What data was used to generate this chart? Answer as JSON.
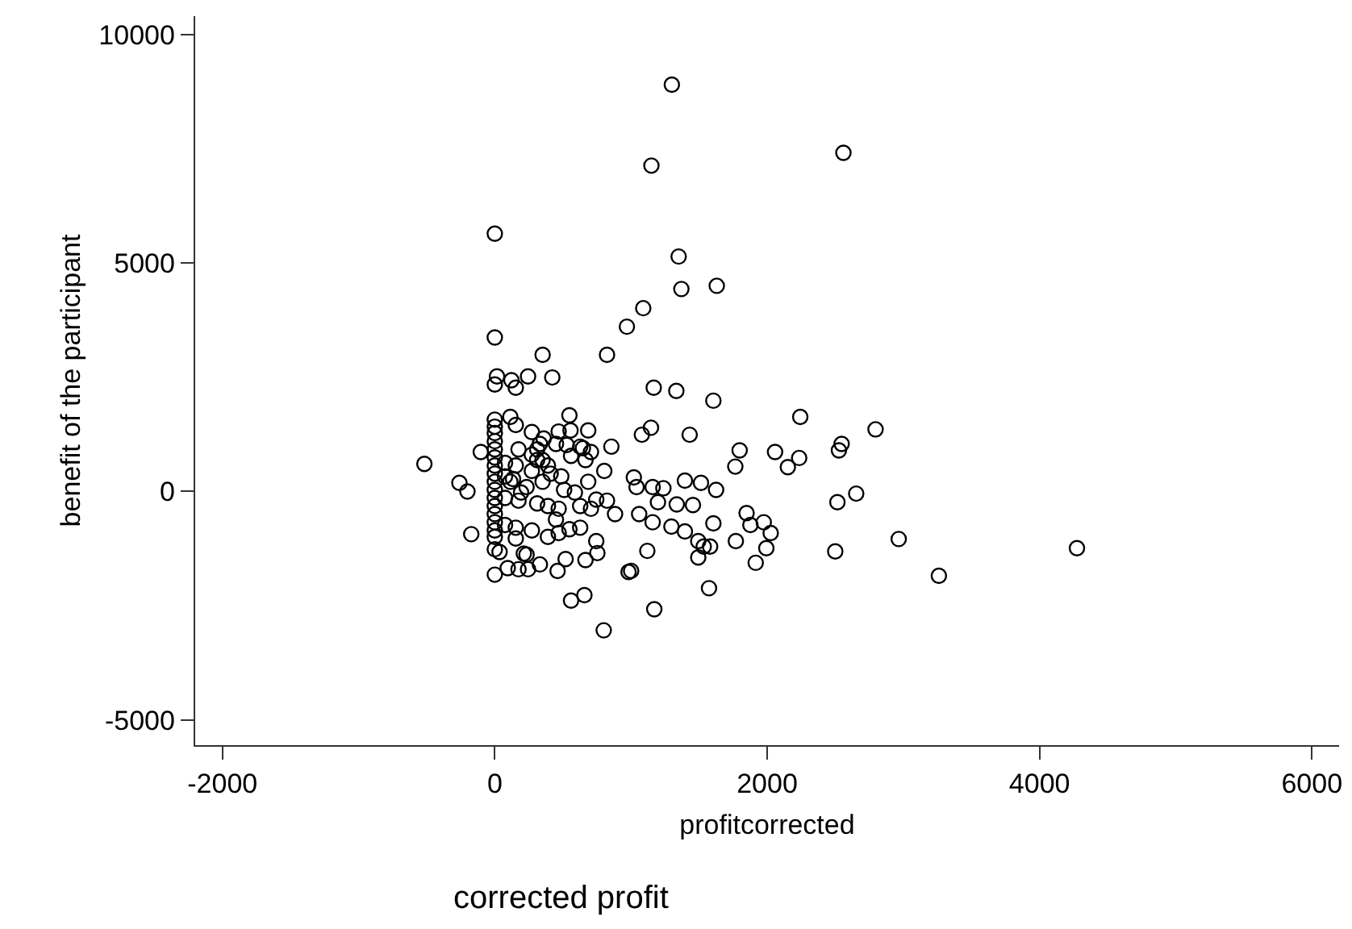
{
  "chart_data": {
    "type": "scatter",
    "xlabel": "profitcorrected",
    "ylabel": "benefit of the participant",
    "annotations": [
      "corrected profit"
    ],
    "xlim": [
      -2200,
      6200
    ],
    "ylim": [
      -5550,
      10400
    ],
    "xticks": [
      -2000,
      0,
      2000,
      4000,
      6000
    ],
    "yticks": [
      -5000,
      0,
      5000,
      10000
    ],
    "marker": "circle",
    "series": [
      {
        "color": "#000000",
        "x": [
          1300,
          1150,
          2560,
          0,
          1350,
          1630,
          1370,
          1090,
          970,
          0,
          351,
          824,
          16,
          122,
          244,
          422,
          0,
          154,
          1167,
          1333,
          1605,
          2243,
          0,
          0,
          0,
          0,
          0,
          0,
          0,
          0,
          0,
          0,
          0,
          0,
          0,
          0,
          0,
          0,
          114,
          154,
          548,
          469,
          556,
          686,
          272,
          359,
          449,
          528,
          627,
          647,
          706,
          856,
          -103,
          174,
          311,
          75,
          154,
          311,
          560,
          666,
          804,
          1431,
          1798,
          1766,
          2058,
          2152,
          2235,
          -517,
          -260,
          -201,
          -173,
          114,
          233,
          351,
          509,
          588,
          686,
          745,
          824,
          1021,
          1041,
          1159,
          1238,
          1396,
          1514,
          1625,
          75,
          174,
          311,
          390,
          469,
          627,
          706,
          883,
          1060,
          1198,
          1336,
          1455,
          1159,
          1297,
          1396,
          1605,
          1494,
          1534,
          1494,
          1581,
          1770,
          1849,
          1877,
          1975,
          2026,
          1994,
          1916,
          1573,
          1171,
          800,
          560,
          658,
          982,
          1001,
          1120,
          745,
          753,
          666,
          520,
          461,
          331,
          244,
          174,
          95,
          0,
          35,
          0,
          213,
          233,
          154,
          272,
          390,
          469,
          548,
          627,
          449,
          75,
          154,
          193,
          272,
          351,
          390,
          410,
          488,
          272,
          331,
          75,
          134,
          1147,
          1080,
          2796,
          2547,
          2527,
          2516,
          2654,
          2500,
          2966,
          3261,
          4275
        ],
        "values": [
          8900,
          7130,
          7410,
          5640,
          5140,
          4500,
          4430,
          4010,
          3605,
          3370,
          2990,
          2990,
          2518,
          2435,
          2518,
          2494,
          2340,
          2270,
          2270,
          2199,
          1986,
          1631,
          1572,
          1418,
          1277,
          1099,
          922,
          745,
          567,
          390,
          213,
          35,
          -142,
          -319,
          -496,
          -674,
          -851,
          -993,
          1631,
          1454,
          1667,
          1312,
          1336,
          1336,
          1300,
          1158,
          1040,
          1017,
          981,
          946,
          863,
          981,
          863,
          922,
          922,
          626,
          567,
          686,
          780,
          686,
          449,
          1241,
          898,
          544,
          863,
          532,
          733,
          603,
          189,
          0,
          -934,
          213,
          95,
          213,
          35,
          -24,
          213,
          -177,
          -201,
          307,
          95,
          95,
          71,
          236,
          189,
          35,
          -142,
          -201,
          -260,
          -319,
          -378,
          -319,
          -378,
          -496,
          -496,
          -236,
          -284,
          -296,
          -674,
          -768,
          -875,
          -697,
          -1087,
          -1206,
          -1442,
          -1206,
          -1087,
          -473,
          -733,
          -674,
          -910,
          -1241,
          -1560,
          -2116,
          -2577,
          -3038,
          -2388,
          -2269,
          -1761,
          -1737,
          -1300,
          -1087,
          -1348,
          -1501,
          -1478,
          -1738,
          -1596,
          -1702,
          -1702,
          -1678,
          -1820,
          -1324,
          -1265,
          -1359,
          -1383,
          -1028,
          -851,
          -993,
          -910,
          -827,
          -792,
          -615,
          -733,
          -792,
          -24,
          449,
          686,
          567,
          390,
          331,
          804,
          1040,
          331,
          272,
          1395,
          1241,
          1359,
          1040,
          898,
          -236,
          -47,
          -1312,
          -1040,
          -1844,
          -1241
        ]
      }
    ]
  }
}
